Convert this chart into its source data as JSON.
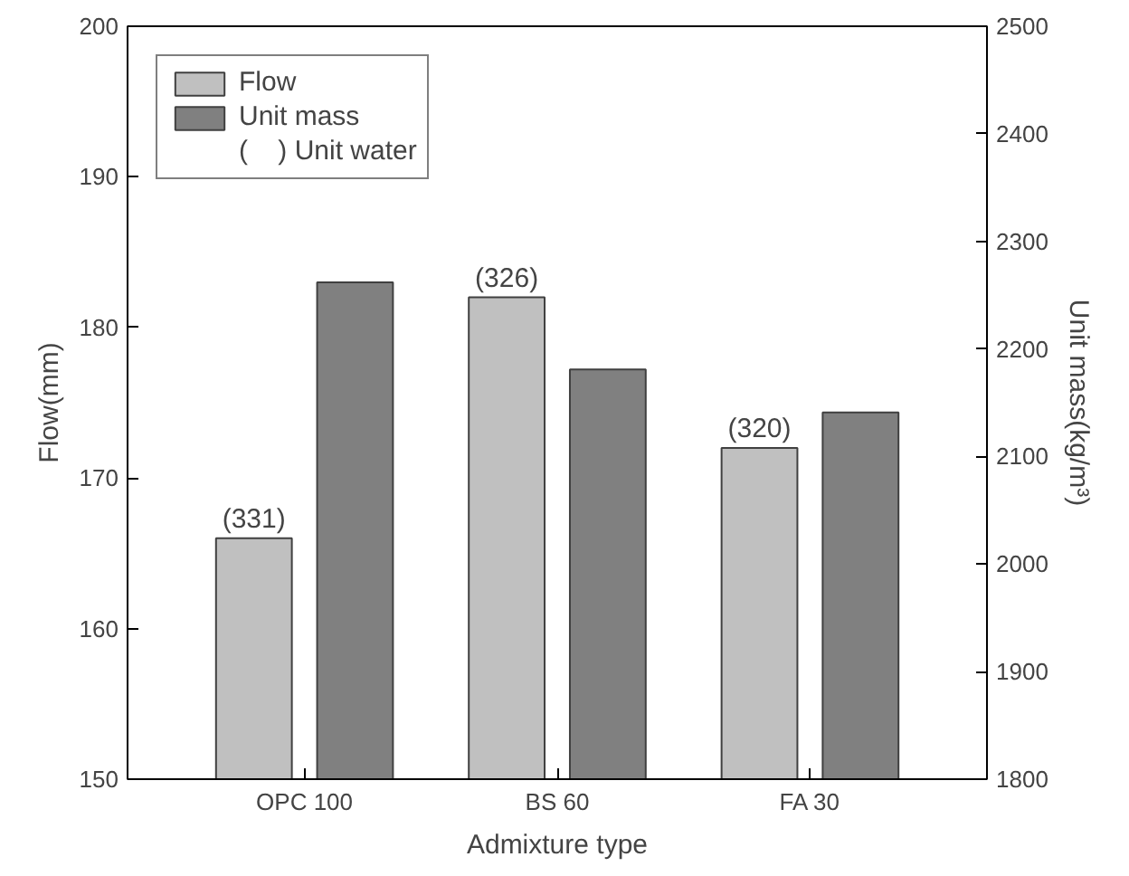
{
  "chart_data": {
    "type": "bar",
    "xlabel": "Admixture type",
    "ylabel": "Flow(mm)",
    "y2label": "Unit mass(kg/m³)",
    "categories": [
      "OPC 100",
      "BS 60",
      "FA 30"
    ],
    "series": [
      {
        "name": "Flow",
        "color": "#c0c0c0",
        "values": [
          166,
          182,
          172
        ]
      },
      {
        "name": "Unit mass",
        "color": "#808080",
        "values": [
          2262,
          2181,
          2141
        ],
        "axis": "y2"
      }
    ],
    "ylim": [
      150,
      200
    ],
    "yticks": [
      150,
      160,
      170,
      180,
      190,
      200
    ],
    "y2lim": [
      1800,
      2500
    ],
    "y2ticks": [
      1800,
      1900,
      2000,
      2100,
      2200,
      2300,
      2400,
      2500
    ],
    "annotations": [
      "(    ) Unit water",
      "(331)",
      "(326)",
      "(320)"
    ],
    "legend": "top left",
    "grid": false
  }
}
